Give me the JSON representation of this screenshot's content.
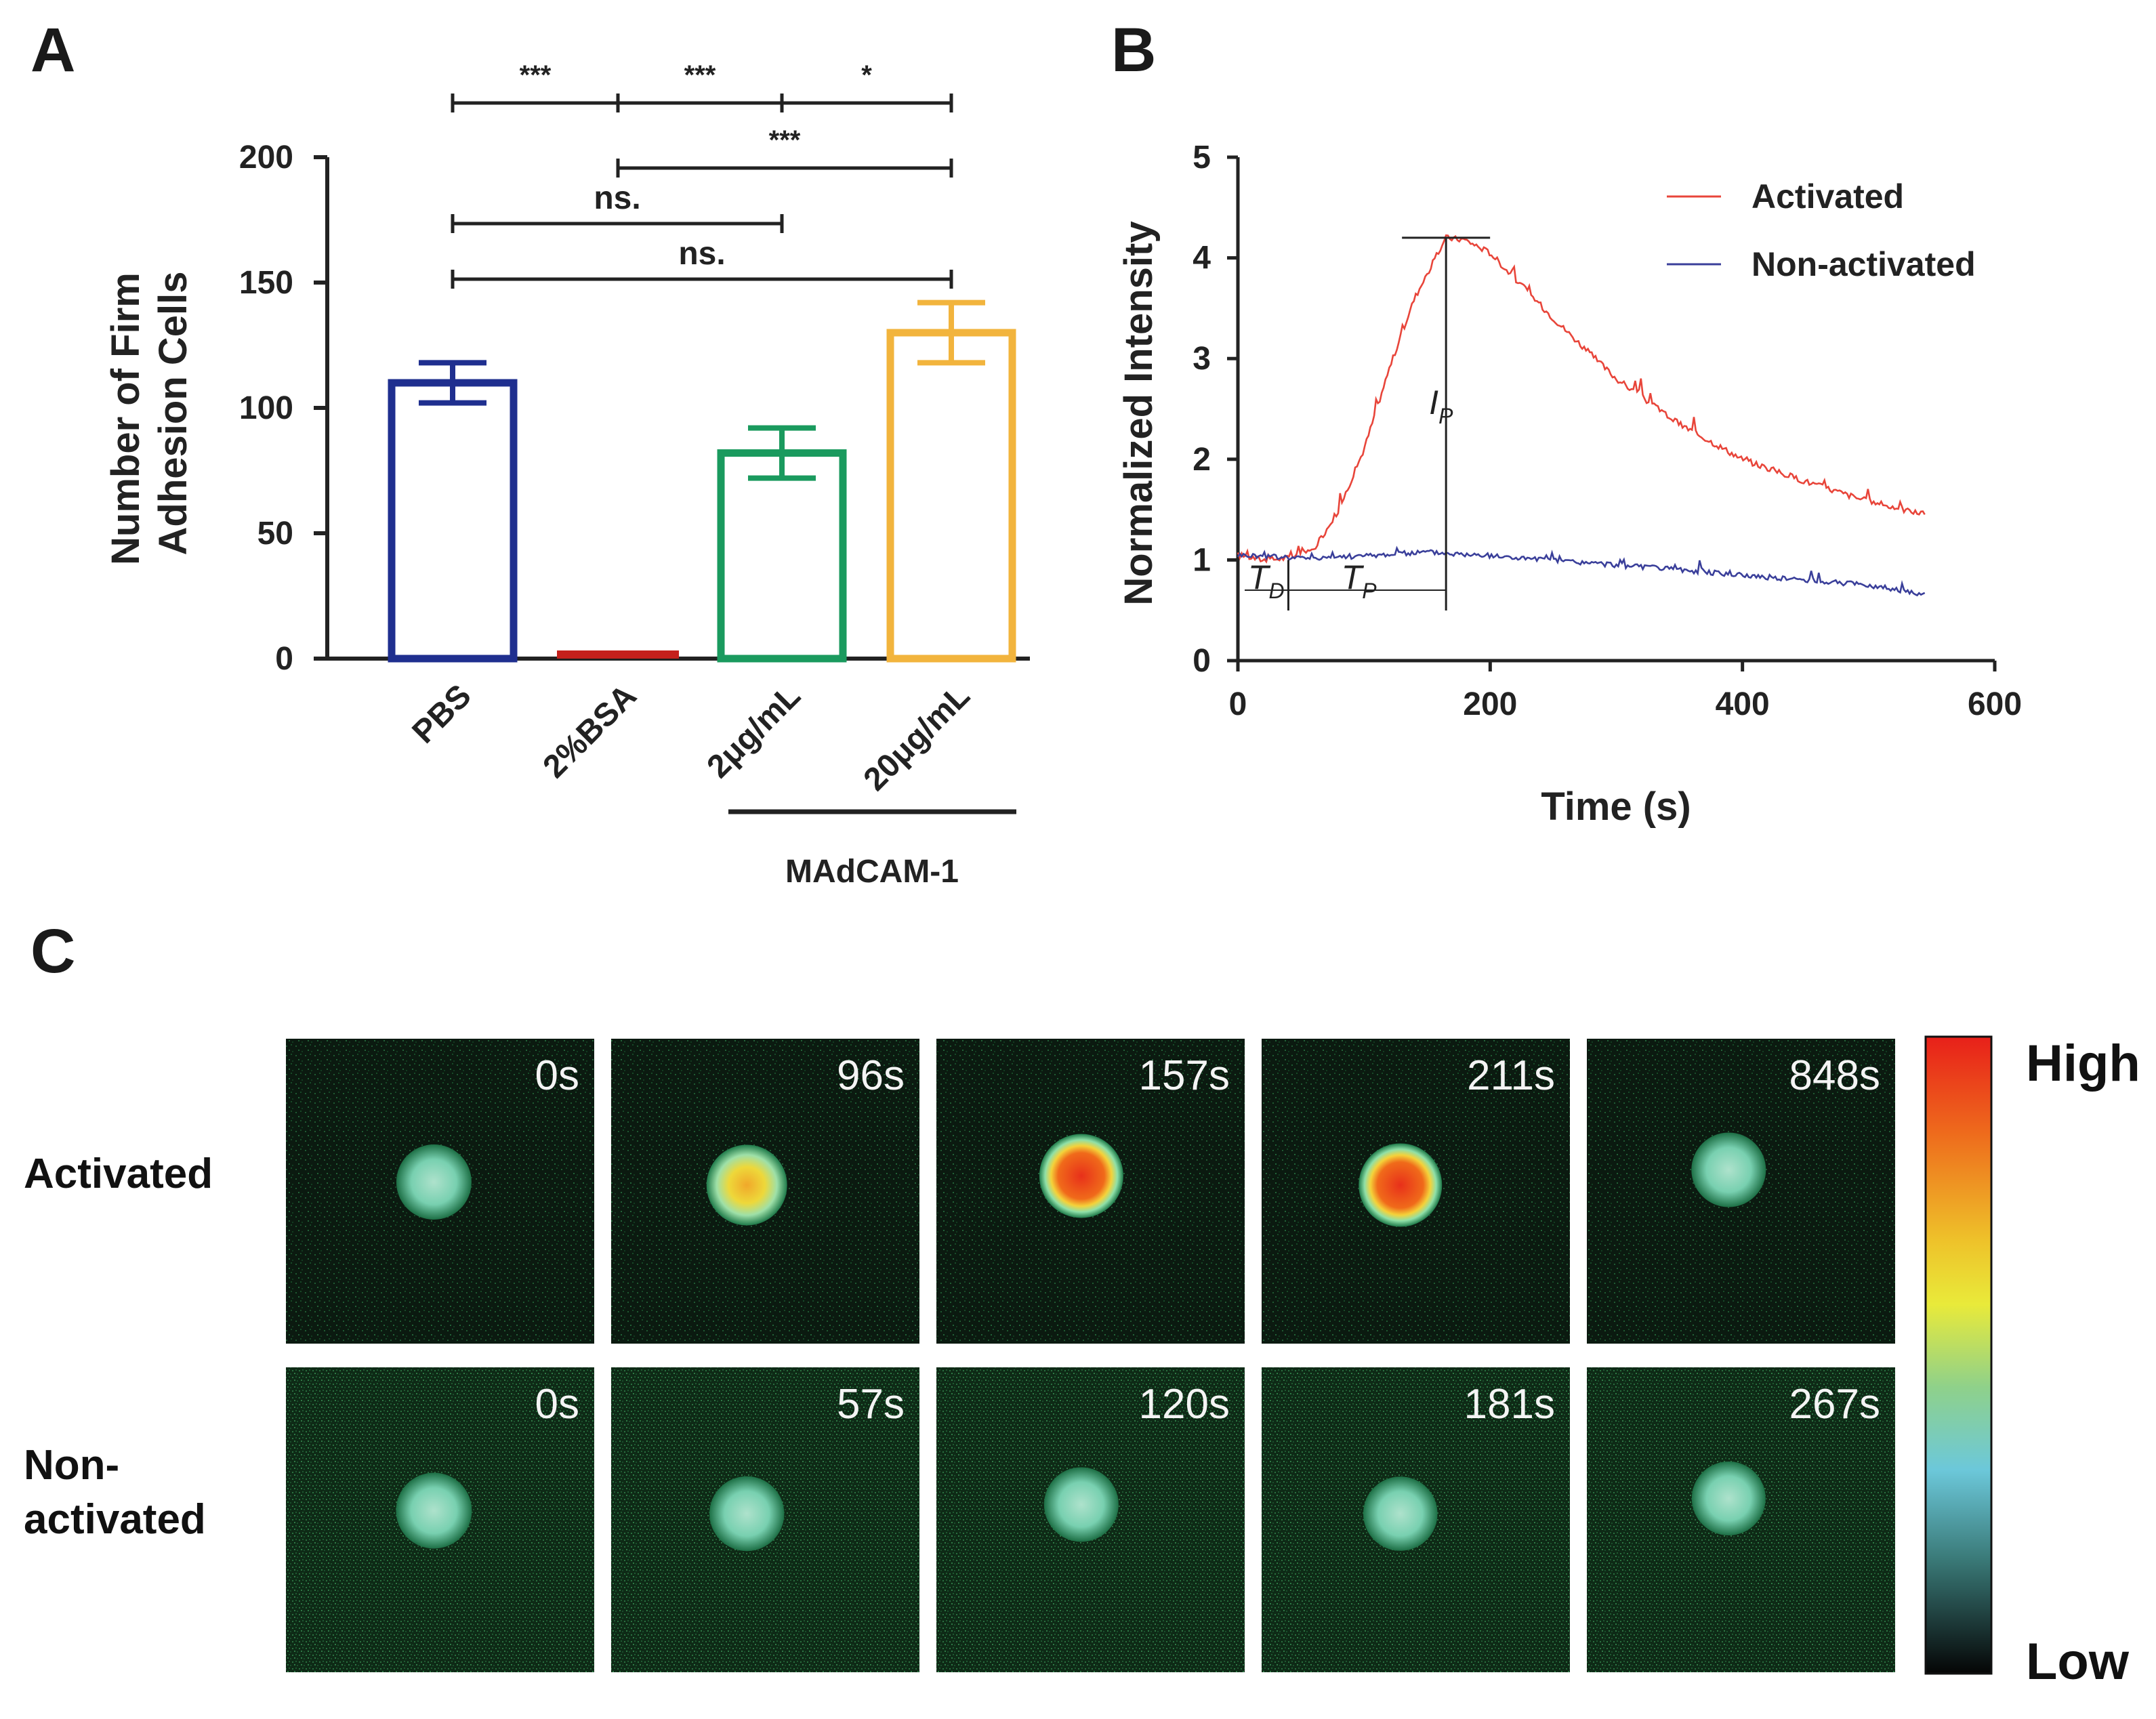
{
  "panels": {
    "a": "A",
    "b": "B",
    "c": "C"
  },
  "chart_data": [
    {
      "id": "A",
      "type": "bar",
      "categories": [
        "PBS",
        "2%BSA",
        "2μg/mL",
        "20μg/mL"
      ],
      "values": [
        110,
        2,
        82,
        130
      ],
      "errors": [
        8,
        1,
        10,
        12
      ],
      "colors": [
        "#1f2f8f",
        "#c4201c",
        "#1a9a5e",
        "#f2b43d"
      ],
      "ylabel": "Number of Firm Adhesion Cells",
      "ylabel_lines": [
        "Number of Firm",
        "Adhesion Cells"
      ],
      "ylim": [
        0,
        200
      ],
      "yticks": [
        0,
        50,
        100,
        150,
        200
      ],
      "group_label": "MAdCAM-1",
      "group_members": [
        "2μg/mL",
        "20μg/mL"
      ],
      "significance": [
        {
          "from": 0,
          "to": 1,
          "label": "***"
        },
        {
          "from": 1,
          "to": 2,
          "label": "***"
        },
        {
          "from": 2,
          "to": 3,
          "label": "*"
        },
        {
          "from": 1,
          "to": 3,
          "label": "***"
        },
        {
          "from": 0,
          "to": 2,
          "label": "ns."
        },
        {
          "from": 0,
          "to": 3,
          "label": "ns."
        }
      ]
    },
    {
      "id": "B",
      "type": "line",
      "title": "",
      "xlabel": "Time (s)",
      "ylabel": "Normalized Intensity",
      "xlim": [
        0,
        600
      ],
      "ylim": [
        0,
        5
      ],
      "xticks": [
        0,
        200,
        400,
        600
      ],
      "yticks": [
        0,
        1,
        2,
        3,
        4,
        5
      ],
      "legend_position": "top-right",
      "series": [
        {
          "name": "Activated",
          "color": "#e8453a",
          "x": [
            0,
            20,
            40,
            60,
            80,
            100,
            120,
            140,
            165,
            180,
            200,
            250,
            300,
            350,
            400,
            450,
            500,
            545
          ],
          "y": [
            1.05,
            1.0,
            1.02,
            1.1,
            1.5,
            2.1,
            2.9,
            3.6,
            4.2,
            4.18,
            4.05,
            3.4,
            2.8,
            2.35,
            2.0,
            1.78,
            1.58,
            1.45
          ]
        },
        {
          "name": "Non-activated",
          "color": "#3a3f9a",
          "x": [
            0,
            50,
            100,
            150,
            200,
            300,
            400,
            500,
            545
          ],
          "y": [
            1.05,
            1.02,
            1.04,
            1.08,
            1.04,
            0.95,
            0.85,
            0.75,
            0.65
          ]
        }
      ],
      "annotations": {
        "peak_intensity": "I",
        "peak_intensity_sub": "P",
        "delay_time": "T",
        "delay_time_sub": "D",
        "peak_time": "T",
        "peak_time_sub": "P",
        "t_delay_value": 40,
        "t_peak_value": 165,
        "i_peak_value": 4.2
      }
    }
  ],
  "panel_c": {
    "rows": [
      {
        "label_lines": [
          "Activated"
        ],
        "frames": [
          {
            "time": "0s",
            "intensity": 0.35
          },
          {
            "time": "96s",
            "intensity": 0.75
          },
          {
            "time": "157s",
            "intensity": 1.0
          },
          {
            "time": "211s",
            "intensity": 0.95
          },
          {
            "time": "848s",
            "intensity": 0.3
          }
        ]
      },
      {
        "label_lines": [
          "Non-",
          "activated"
        ],
        "frames": [
          {
            "time": "0s",
            "intensity": 0.4
          },
          {
            "time": "57s",
            "intensity": 0.32
          },
          {
            "time": "120s",
            "intensity": 0.3
          },
          {
            "time": "181s",
            "intensity": 0.28
          },
          {
            "time": "267s",
            "intensity": 0.25
          }
        ]
      }
    ],
    "scale_high": "High",
    "scale_low": "Low"
  }
}
